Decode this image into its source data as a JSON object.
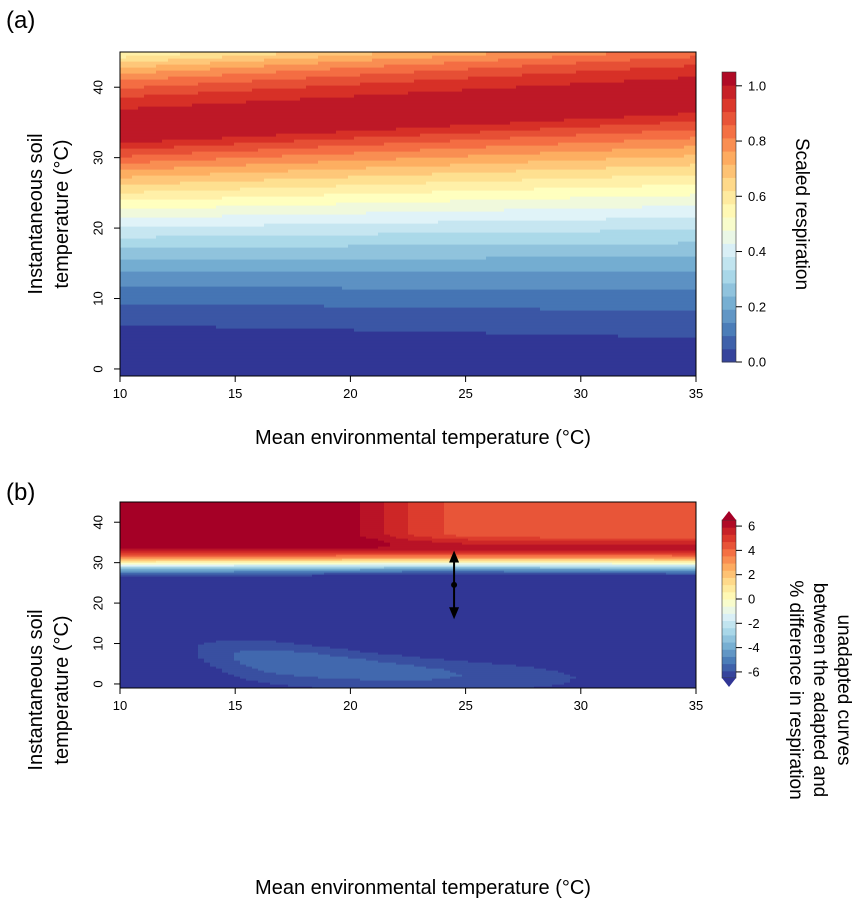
{
  "chart_data": [
    {
      "panel": "(a)",
      "type": "heatmap",
      "xlabel": "Mean environmental temperature (°C)",
      "ylabel_lines": [
        "Instantaneous soil",
        "temperature (°C)"
      ],
      "xlim": [
        10,
        35
      ],
      "ylim": [
        -1,
        45
      ],
      "x_ticks": [
        10,
        15,
        20,
        25,
        30,
        35
      ],
      "y_ticks": [
        0,
        10,
        20,
        30,
        40
      ],
      "colorbar": {
        "title": "Scaled respiration",
        "range": [
          0,
          1.05
        ],
        "ticks": [
          "0.0",
          "0.2",
          "0.4",
          "0.6",
          "0.8",
          "1.0"
        ],
        "tick_values": [
          0,
          0.2,
          0.4,
          0.6,
          0.8,
          1.0
        ],
        "extend_arrows": false
      },
      "colors": [
        "#313695",
        "#4575b4",
        "#74add1",
        "#abd9e9",
        "#e0f3f8",
        "#ffffbf",
        "#fee090",
        "#fdae61",
        "#f46d43",
        "#d73027",
        "#a50026"
      ],
      "surface": {
        "description_values": "Scaled respiration peaks (~1.0) at soil temperature ~33°C (low mean env. temp) rising to ~37°C (high mean env. temp); ~0 at soil temp 0°C.",
        "peak_soil_temp_at_x10": 33,
        "peak_soil_temp_at_x35": 37.5
      }
    },
    {
      "panel": "(b)",
      "type": "heatmap",
      "xlabel": "Mean environmental temperature (°C)",
      "ylabel_lines": [
        "Instantaneous soil",
        "temperature (°C)"
      ],
      "xlim": [
        10,
        35
      ],
      "ylim": [
        -1,
        45
      ],
      "x_ticks": [
        10,
        15,
        20,
        25,
        30,
        35
      ],
      "y_ticks": [
        0,
        10,
        20,
        30,
        40
      ],
      "colorbar": {
        "title_lines": [
          "% difference in respiration",
          "between the adapted and",
          "unadapted curves"
        ],
        "range": [
          -6.5,
          6.5
        ],
        "ticks": [
          "-6",
          "-4",
          "-2",
          "0",
          "2",
          "4",
          "6"
        ],
        "tick_values": [
          -6,
          -4,
          -2,
          0,
          2,
          4,
          6
        ],
        "extend_arrows": true
      },
      "colors": [
        "#313695",
        "#4575b4",
        "#74add1",
        "#abd9e9",
        "#e0f3f8",
        "#ffffbf",
        "#fee090",
        "#fdae61",
        "#f46d43",
        "#d73027",
        "#a50026"
      ],
      "annotation": {
        "type": "double-arrow",
        "x": 24.5,
        "y_from": 16,
        "y_to": 33,
        "dot_y": 24.5
      }
    }
  ]
}
